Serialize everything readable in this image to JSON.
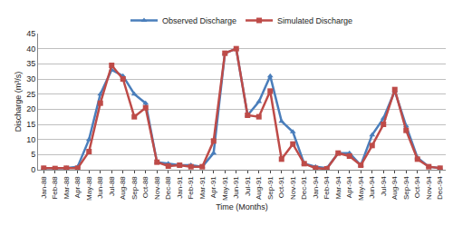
{
  "chart_data": {
    "type": "line",
    "x_label": "Time (Months)",
    "y_label": "Discharge (m³/s)",
    "categories": [
      "Jan-88",
      "Feb-88",
      "Mar-88",
      "Apr-88",
      "May-88",
      "Jun-88",
      "Jul-88",
      "Aug-88",
      "Sep-88",
      "Oct-88",
      "Nov-88",
      "Dec-88",
      "Jan-91",
      "Feb-91",
      "Mar-91",
      "Apr-91",
      "May-91",
      "Jun-91",
      "Jul-91",
      "Aug-91",
      "Sep-91",
      "Oct-91",
      "Nov-91",
      "Dec-91",
      "Jan-94",
      "Feb-94",
      "Mar-94",
      "Apr-94",
      "May-94",
      "Jun-94",
      "Jul-94",
      "Aug-94",
      "Sep-94",
      "Oct-94",
      "Nov-94",
      "Dec-94"
    ],
    "series": [
      {
        "name": "Observed Discharge",
        "color": "#4a7ebb",
        "marker": "triangle",
        "values": [
          0.5,
          0.4,
          0.5,
          1,
          10,
          25,
          33,
          31,
          25,
          22,
          2.5,
          2,
          1.5,
          1.5,
          1,
          5.5,
          38.5,
          40,
          18,
          22.5,
          31,
          16,
          12.5,
          2,
          1,
          0.5,
          5.5,
          5.5,
          1.5,
          11.5,
          17,
          26,
          14.5,
          4,
          1,
          0.5
        ]
      },
      {
        "name": "Simulated Discharge",
        "color": "#be4b48",
        "marker": "square",
        "values": [
          0.5,
          0.4,
          0.5,
          0.5,
          6,
          22,
          34.5,
          30,
          17.5,
          20.5,
          2.5,
          1.2,
          1.5,
          1,
          1,
          9.5,
          38.5,
          40,
          18,
          17.5,
          26,
          3.5,
          8.5,
          2,
          0.5,
          0.3,
          5.5,
          4.5,
          1.5,
          8,
          15,
          26.5,
          13,
          3.5,
          1,
          0.5
        ]
      }
    ],
    "ylim": [
      0,
      45
    ],
    "yticks": [
      0,
      5,
      10,
      15,
      20,
      25,
      30,
      35,
      40,
      45
    ],
    "grid": true,
    "legend": "top"
  }
}
